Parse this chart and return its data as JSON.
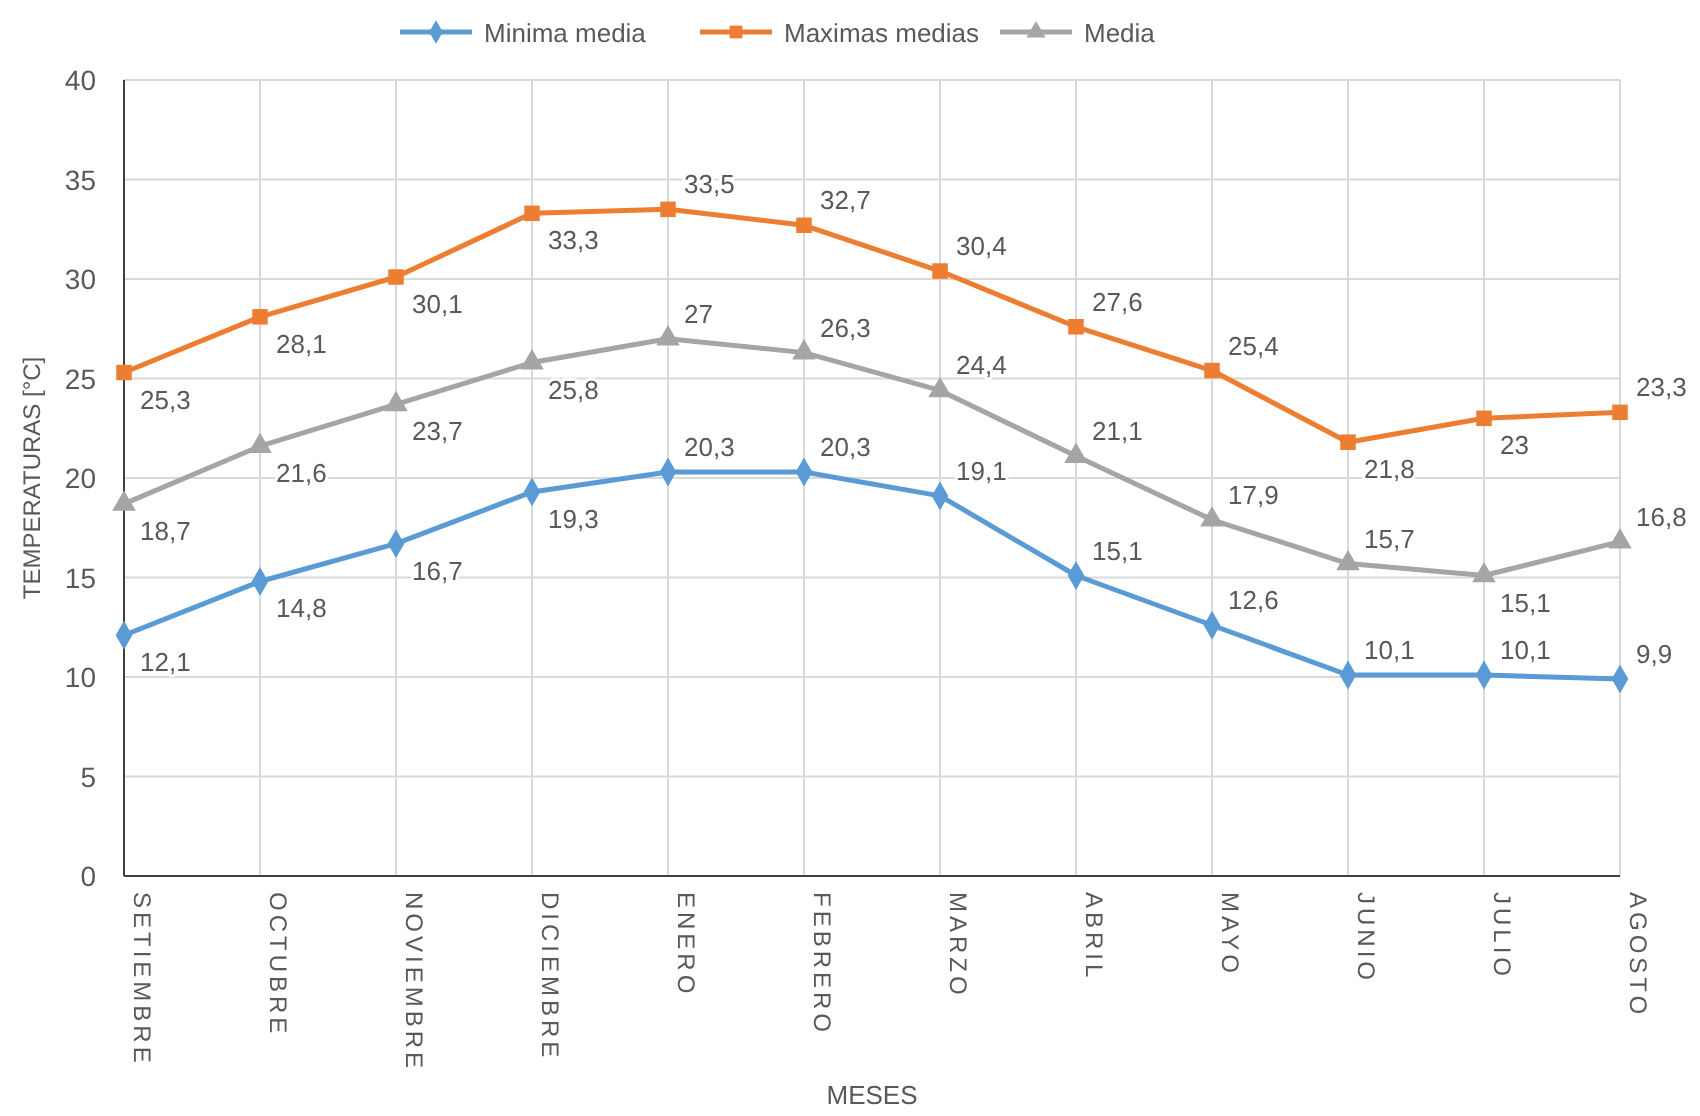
{
  "chart_data": {
    "type": "line",
    "xlabel": "MESES",
    "ylabel": "TEMPERATURAS [°C]",
    "categories": [
      "SETIEMBRE",
      "OCTUBRE",
      "NOVIEMBRE",
      "DICIEMBRE",
      "ENERO",
      "FEBRERO",
      "MARZO",
      "ABRIL",
      "MAYO",
      "JUNIO",
      "JULIO",
      "AGOSTO"
    ],
    "series": [
      {
        "name": "Minima media",
        "color": "#5b9bd5",
        "marker": "diamond",
        "values": [
          12.1,
          14.8,
          16.7,
          19.3,
          20.3,
          20.3,
          19.1,
          15.1,
          12.6,
          10.1,
          10.1,
          9.9
        ],
        "value_labels": [
          "12,1",
          "14,8",
          "16,7",
          "19,3",
          "20,3",
          "20,3",
          "19,1",
          "15,1",
          "12,6",
          "10,1",
          "10,1",
          "9,9"
        ]
      },
      {
        "name": "Maximas medias",
        "color": "#ed7d31",
        "marker": "square",
        "values": [
          25.3,
          28.1,
          30.1,
          33.3,
          33.5,
          32.7,
          30.4,
          27.6,
          25.4,
          21.8,
          23,
          23.3
        ],
        "value_labels": [
          "25,3",
          "28,1",
          "30,1",
          "33,3",
          "33,5",
          "32,7",
          "30,4",
          "27,6",
          "25,4",
          "21,8",
          "23",
          "23,3"
        ]
      },
      {
        "name": "Media",
        "color": "#a5a5a5",
        "marker": "triangle",
        "values": [
          18.7,
          21.6,
          23.7,
          25.8,
          27,
          26.3,
          24.4,
          21.1,
          17.9,
          15.7,
          15.1,
          16.8
        ],
        "value_labels": [
          "18,7",
          "21,6",
          "23,7",
          "25,8",
          "27",
          "26,3",
          "24,4",
          "21,1",
          "17,9",
          "15,7",
          "15,1",
          "16,8"
        ]
      }
    ],
    "ylim": [
      0,
      40
    ],
    "yticks": [
      0,
      5,
      10,
      15,
      20,
      25,
      30,
      35,
      40
    ],
    "grid": true,
    "legend": "top"
  }
}
